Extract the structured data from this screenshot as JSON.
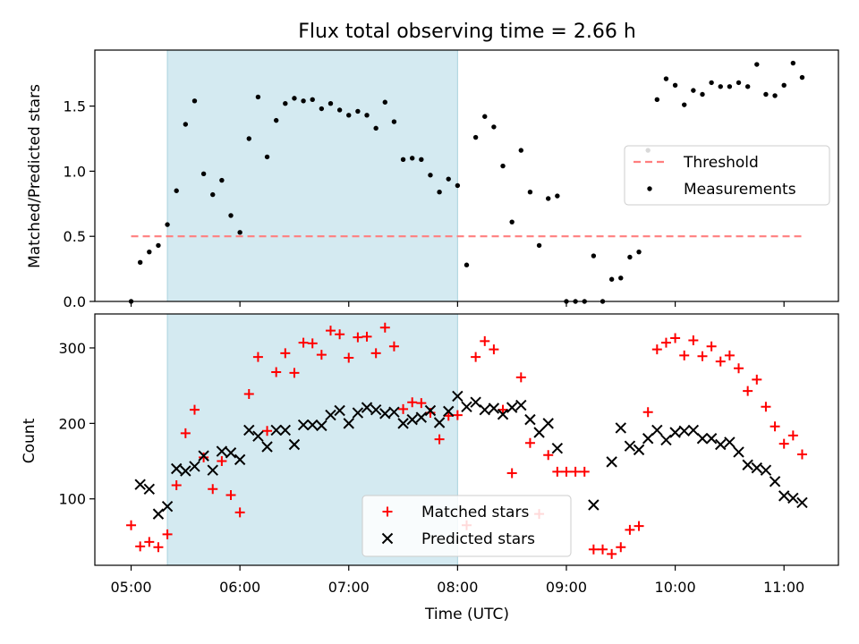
{
  "chart_data": [
    {
      "type": "scatter",
      "title": "Flux total observing time = 2.66 h",
      "xlabel": "",
      "ylabel": "Matched/Predicted stars",
      "xlim": [
        "04:40",
        "11:30"
      ],
      "ylim": [
        0,
        1.93
      ],
      "yticks": [
        "0.0",
        "0.5",
        "1.0",
        "1.5"
      ],
      "highlight_span": {
        "start": "05:20",
        "end": "08:00",
        "color": "#d4eaf1"
      },
      "legend": {
        "placement": "center-right",
        "entries": [
          "Threshold",
          "Measurements"
        ]
      },
      "threshold": {
        "name": "Threshold",
        "value": 0.5,
        "x_start": "05:00",
        "x_end": "11:10",
        "color": "#ff7f7f",
        "style": "dashed"
      },
      "series": [
        {
          "name": "Measurements",
          "color": "#000000",
          "marker": "dot",
          "points": [
            [
              "05:00",
              0.0
            ],
            [
              "05:05",
              0.3
            ],
            [
              "05:10",
              0.38
            ],
            [
              "05:15",
              0.43
            ],
            [
              "05:20",
              0.59
            ],
            [
              "05:25",
              0.85
            ],
            [
              "05:30",
              1.36
            ],
            [
              "05:35",
              1.54
            ],
            [
              "05:40",
              0.98
            ],
            [
              "05:45",
              0.82
            ],
            [
              "05:50",
              0.93
            ],
            [
              "05:55",
              0.66
            ],
            [
              "06:00",
              0.53
            ],
            [
              "06:05",
              1.25
            ],
            [
              "06:10",
              1.57
            ],
            [
              "06:15",
              1.11
            ],
            [
              "06:20",
              1.39
            ],
            [
              "06:25",
              1.52
            ],
            [
              "06:30",
              1.56
            ],
            [
              "06:35",
              1.54
            ],
            [
              "06:40",
              1.55
            ],
            [
              "06:45",
              1.48
            ],
            [
              "06:50",
              1.52
            ],
            [
              "06:55",
              1.47
            ],
            [
              "07:00",
              1.43
            ],
            [
              "07:05",
              1.46
            ],
            [
              "07:10",
              1.43
            ],
            [
              "07:15",
              1.33
            ],
            [
              "07:20",
              1.53
            ],
            [
              "07:25",
              1.38
            ],
            [
              "07:30",
              1.09
            ],
            [
              "07:35",
              1.1
            ],
            [
              "07:40",
              1.09
            ],
            [
              "07:45",
              0.97
            ],
            [
              "07:50",
              0.84
            ],
            [
              "07:55",
              0.94
            ],
            [
              "08:00",
              0.89
            ],
            [
              "08:05",
              0.28
            ],
            [
              "08:10",
              1.26
            ],
            [
              "08:15",
              1.42
            ],
            [
              "08:20",
              1.34
            ],
            [
              "08:25",
              1.04
            ],
            [
              "08:30",
              0.61
            ],
            [
              "08:35",
              1.16
            ],
            [
              "08:40",
              0.84
            ],
            [
              "08:45",
              0.43
            ],
            [
              "08:50",
              0.79
            ],
            [
              "08:55",
              0.81
            ],
            [
              "09:00",
              0.0
            ],
            [
              "09:05",
              0.0
            ],
            [
              "09:10",
              0.0
            ],
            [
              "09:15",
              0.35
            ],
            [
              "09:20",
              0.0
            ],
            [
              "09:25",
              0.17
            ],
            [
              "09:30",
              0.18
            ],
            [
              "09:35",
              0.34
            ],
            [
              "09:40",
              0.38
            ],
            [
              "09:45",
              1.16
            ],
            [
              "09:50",
              1.55
            ],
            [
              "09:55",
              1.71
            ],
            [
              "10:00",
              1.66
            ],
            [
              "10:05",
              1.51
            ],
            [
              "10:10",
              1.62
            ],
            [
              "10:15",
              1.59
            ],
            [
              "10:20",
              1.68
            ],
            [
              "10:25",
              1.65
            ],
            [
              "10:30",
              1.65
            ],
            [
              "10:35",
              1.68
            ],
            [
              "10:40",
              1.65
            ],
            [
              "10:45",
              1.82
            ],
            [
              "10:50",
              1.59
            ],
            [
              "10:55",
              1.58
            ],
            [
              "11:00",
              1.66
            ],
            [
              "11:05",
              1.83
            ],
            [
              "11:10",
              1.72
            ]
          ]
        }
      ]
    },
    {
      "type": "scatter",
      "title": "",
      "xlabel": "Time (UTC)",
      "ylabel": "Count",
      "xlim": [
        "04:40",
        "11:30"
      ],
      "ylim": [
        12,
        345
      ],
      "xticks": [
        "05:00",
        "06:00",
        "07:00",
        "08:00",
        "09:00",
        "10:00",
        "11:00"
      ],
      "yticks": [
        "100",
        "200",
        "300"
      ],
      "highlight_span": {
        "start": "05:20",
        "end": "08:00",
        "color": "#d4eaf1"
      },
      "legend": {
        "placement": "lower-center",
        "entries": [
          "Matched stars",
          "Predicted stars"
        ]
      },
      "series": [
        {
          "name": "Matched stars",
          "color": "#ff0000",
          "marker": "plus",
          "points": [
            [
              "05:00",
              65
            ],
            [
              "05:05",
              37
            ],
            [
              "05:10",
              43
            ],
            [
              "05:15",
              36
            ],
            [
              "05:20",
              53
            ],
            [
              "05:25",
              118
            ],
            [
              "05:30",
              187
            ],
            [
              "05:35",
              218
            ],
            [
              "05:40",
              155
            ],
            [
              "05:45",
              113
            ],
            [
              "05:50",
              150
            ],
            [
              "05:55",
              105
            ],
            [
              "06:00",
              82
            ],
            [
              "06:05",
              239
            ],
            [
              "06:10",
              288
            ],
            [
              "06:15",
              190
            ],
            [
              "06:20",
              268
            ],
            [
              "06:25",
              293
            ],
            [
              "06:30",
              267
            ],
            [
              "06:35",
              307
            ],
            [
              "06:40",
              306
            ],
            [
              "06:45",
              291
            ],
            [
              "06:50",
              323
            ],
            [
              "06:55",
              318
            ],
            [
              "07:00",
              287
            ],
            [
              "07:05",
              314
            ],
            [
              "07:10",
              315
            ],
            [
              "07:15",
              293
            ],
            [
              "07:20",
              327
            ],
            [
              "07:25",
              302
            ],
            [
              "07:30",
              219
            ],
            [
              "07:35",
              228
            ],
            [
              "07:40",
              227
            ],
            [
              "07:45",
              214
            ],
            [
              "07:50",
              179
            ],
            [
              "07:55",
              210
            ],
            [
              "08:00",
              211
            ],
            [
              "08:05",
              65
            ],
            [
              "08:10",
              288
            ],
            [
              "08:15",
              309
            ],
            [
              "08:20",
              298
            ],
            [
              "08:25",
              218
            ],
            [
              "08:30",
              134
            ],
            [
              "08:35",
              261
            ],
            [
              "08:40",
              174
            ],
            [
              "08:45",
              80
            ],
            [
              "08:50",
              158
            ],
            [
              "08:55",
              136
            ],
            [
              "09:00",
              136
            ],
            [
              "09:05",
              136
            ],
            [
              "09:10",
              136
            ],
            [
              "09:15",
              33
            ],
            [
              "09:20",
              33
            ],
            [
              "09:25",
              27
            ],
            [
              "09:30",
              36
            ],
            [
              "09:35",
              59
            ],
            [
              "09:40",
              64
            ],
            [
              "09:45",
              215
            ],
            [
              "09:50",
              298
            ],
            [
              "09:55",
              307
            ],
            [
              "10:00",
              313
            ],
            [
              "10:05",
              290
            ],
            [
              "10:10",
              310
            ],
            [
              "10:15",
              289
            ],
            [
              "10:20",
              302
            ],
            [
              "10:25",
              282
            ],
            [
              "10:30",
              290
            ],
            [
              "10:35",
              273
            ],
            [
              "10:40",
              243
            ],
            [
              "10:45",
              258
            ],
            [
              "10:50",
              222
            ],
            [
              "10:55",
              196
            ],
            [
              "11:00",
              173
            ],
            [
              "11:05",
              184
            ],
            [
              "11:10",
              159
            ]
          ]
        },
        {
          "name": "Predicted stars",
          "color": "#000000",
          "marker": "x",
          "points": [
            [
              "05:05",
              119
            ],
            [
              "05:10",
              113
            ],
            [
              "05:15",
              80
            ],
            [
              "05:20",
              90
            ],
            [
              "05:25",
              140
            ],
            [
              "05:30",
              137
            ],
            [
              "05:35",
              143
            ],
            [
              "05:40",
              157
            ],
            [
              "05:45",
              138
            ],
            [
              "05:50",
              163
            ],
            [
              "05:55",
              161
            ],
            [
              "06:00",
              152
            ],
            [
              "06:05",
              191
            ],
            [
              "06:10",
              183
            ],
            [
              "06:15",
              169
            ],
            [
              "06:20",
              191
            ],
            [
              "06:25",
              191
            ],
            [
              "06:30",
              172
            ],
            [
              "06:35",
              198
            ],
            [
              "06:40",
              198
            ],
            [
              "06:45",
              197
            ],
            [
              "06:50",
              211
            ],
            [
              "06:55",
              217
            ],
            [
              "07:00",
              200
            ],
            [
              "07:05",
              214
            ],
            [
              "07:10",
              221
            ],
            [
              "07:15",
              218
            ],
            [
              "07:20",
              213
            ],
            [
              "07:25",
              215
            ],
            [
              "07:30",
              200
            ],
            [
              "07:35",
              205
            ],
            [
              "07:40",
              208
            ],
            [
              "07:45",
              217
            ],
            [
              "07:50",
              201
            ],
            [
              "07:55",
              216
            ],
            [
              "08:00",
              236
            ],
            [
              "08:05",
              222
            ],
            [
              "08:10",
              228
            ],
            [
              "08:15",
              218
            ],
            [
              "08:20",
              220
            ],
            [
              "08:25",
              212
            ],
            [
              "08:30",
              221
            ],
            [
              "08:35",
              224
            ],
            [
              "08:40",
              205
            ],
            [
              "08:45",
              188
            ],
            [
              "08:50",
              200
            ],
            [
              "08:55",
              167
            ],
            [
              "09:15",
              92
            ],
            [
              "09:25",
              149
            ],
            [
              "09:30",
              194
            ],
            [
              "09:35",
              170
            ],
            [
              "09:40",
              165
            ],
            [
              "09:45",
              180
            ],
            [
              "09:50",
              191
            ],
            [
              "09:55",
              178
            ],
            [
              "10:00",
              188
            ],
            [
              "10:05",
              190
            ],
            [
              "10:10",
              191
            ],
            [
              "10:15",
              180
            ],
            [
              "10:20",
              180
            ],
            [
              "10:25",
              172
            ],
            [
              "10:30",
              175
            ],
            [
              "10:35",
              162
            ],
            [
              "10:40",
              145
            ],
            [
              "10:45",
              141
            ],
            [
              "10:50",
              138
            ],
            [
              "10:55",
              123
            ],
            [
              "11:00",
              104
            ],
            [
              "11:05",
              101
            ],
            [
              "11:10",
              95
            ]
          ]
        }
      ]
    }
  ]
}
